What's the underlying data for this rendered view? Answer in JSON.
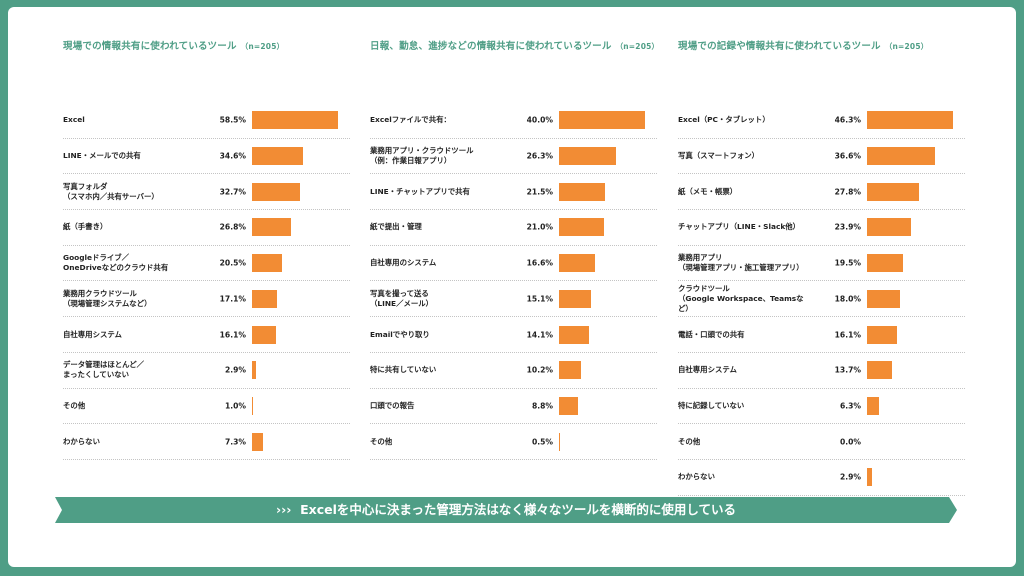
{
  "colors": {
    "accent": "#4f9e86",
    "bar": "#f28c34"
  },
  "footer": {
    "arrows": "›››",
    "text": "Excelを中心に決まった管理方法はなく様々なツールを横断的に使用している"
  },
  "chart_data": [
    {
      "type": "bar",
      "orientation": "horizontal",
      "title": "現場での情報共有に使われているツール",
      "sample": "（n=205）",
      "xlim": [
        0,
        58.5
      ],
      "categories": [
        "Excel",
        "LINE・メールでの共有",
        "写真フォルダ\n（スマホ内／共有サーバー）",
        "紙（手書き）",
        "Googleドライブ／\nOneDriveなどのクラウド共有",
        "業務用クラウドツール\n（現場管理システムなど）",
        "自社専用システム",
        "データ管理はほとんど／\nまったくしていない",
        "その他",
        "わからない"
      ],
      "values": [
        58.5,
        34.6,
        32.7,
        26.8,
        20.5,
        17.1,
        16.1,
        2.9,
        1.0,
        7.3
      ],
      "value_labels": [
        "58.5%",
        "34.6%",
        "32.7%",
        "26.8%",
        "20.5%",
        "17.1%",
        "16.1%",
        "2.9%",
        "1.0%",
        "7.3%"
      ]
    },
    {
      "type": "bar",
      "orientation": "horizontal",
      "title": "日報、勤怠、進捗などの情報共有に使われているツール",
      "sample": "（n=205）",
      "xlim": [
        0,
        40.0
      ],
      "categories": [
        "Excelファイルで共有：",
        "業務用アプリ・クラウドツール\n（例：作業日報アプリ）",
        "LINE・チャットアプリで共有",
        "紙で提出・管理",
        "自社専用のシステム",
        "写真を撮って送る\n（LINE／メール）",
        "Emailでやり取り",
        "特に共有していない",
        "口頭での報告",
        "その他"
      ],
      "values": [
        40.0,
        26.3,
        21.5,
        21.0,
        16.6,
        15.1,
        14.1,
        10.2,
        8.8,
        0.5
      ],
      "value_labels": [
        "40.0%",
        "26.3%",
        "21.5%",
        "21.0%",
        "16.6%",
        "15.1%",
        "14.1%",
        "10.2%",
        "8.8%",
        "0.5%"
      ]
    },
    {
      "type": "bar",
      "orientation": "horizontal",
      "title": "現場での記録や情報共有に使われているツール",
      "sample": "（n=205）",
      "xlim": [
        0,
        46.3
      ],
      "categories": [
        "Excel（PC・タブレット）",
        "写真（スマートフォン）",
        "紙（メモ・帳票）",
        "チャットアプリ（LINE・Slack他）",
        "業務用アプリ\n（現場管理アプリ・施工管理アプリ）",
        "クラウドツール\n（Google Workspace、Teamsなど）",
        "電話・口頭での共有",
        "自社専用システム",
        "特に記録していない",
        "その他",
        "わからない"
      ],
      "values": [
        46.3,
        36.6,
        27.8,
        23.9,
        19.5,
        18.0,
        16.1,
        13.7,
        6.3,
        0.0,
        2.9
      ],
      "value_labels": [
        "46.3%",
        "36.6%",
        "27.8%",
        "23.9%",
        "19.5%",
        "18.0%",
        "16.1%",
        "13.7%",
        "6.3%",
        "0.0%",
        "2.9%"
      ]
    }
  ]
}
